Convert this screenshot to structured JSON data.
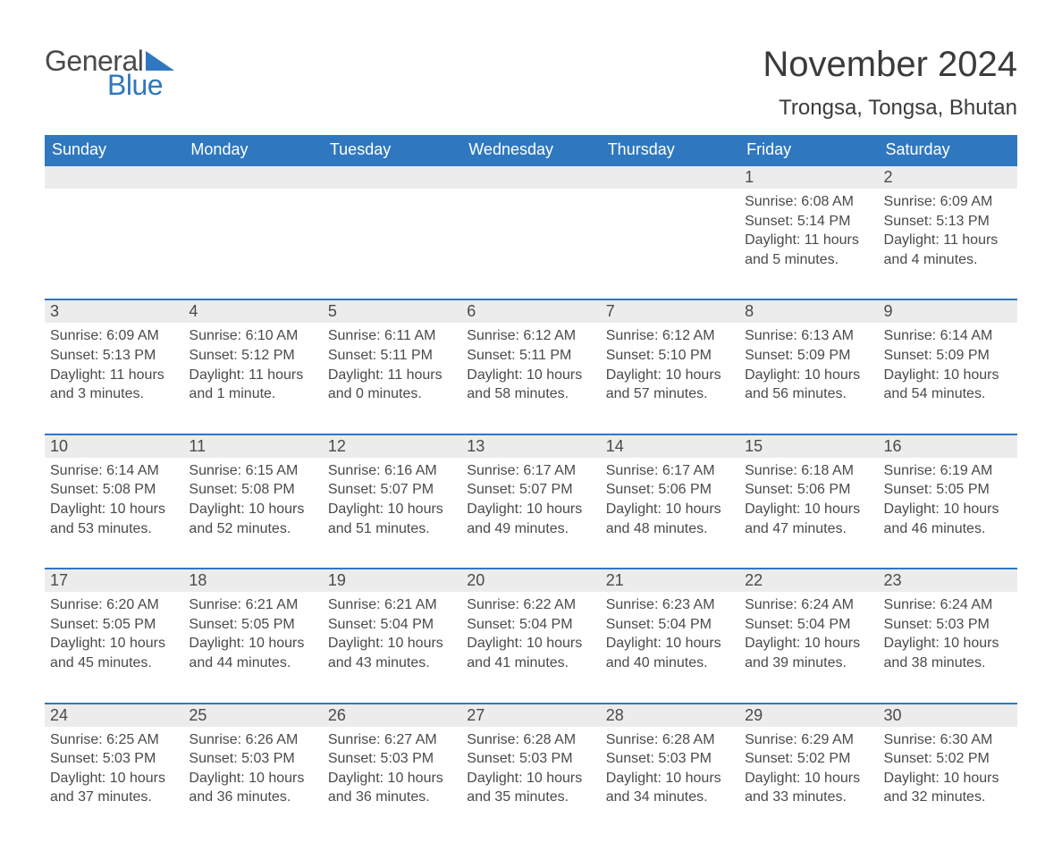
{
  "logo": {
    "text1": "General",
    "text2": "Blue",
    "accent_color": "#2f78bf"
  },
  "title": "November 2024",
  "location": "Trongsa, Tongsa, Bhutan",
  "colors": {
    "header_bg": "#2f78bf",
    "header_text": "#ffffff",
    "daynum_bg": "#ececec",
    "border_top": "#2f78bf",
    "body_text": "#4a4a4a"
  },
  "day_headers": [
    "Sunday",
    "Monday",
    "Tuesday",
    "Wednesday",
    "Thursday",
    "Friday",
    "Saturday"
  ],
  "weeks": [
    [
      {
        "day": "",
        "sunrise": "",
        "sunset": "",
        "daylight": ""
      },
      {
        "day": "",
        "sunrise": "",
        "sunset": "",
        "daylight": ""
      },
      {
        "day": "",
        "sunrise": "",
        "sunset": "",
        "daylight": ""
      },
      {
        "day": "",
        "sunrise": "",
        "sunset": "",
        "daylight": ""
      },
      {
        "day": "",
        "sunrise": "",
        "sunset": "",
        "daylight": ""
      },
      {
        "day": "1",
        "sunrise": "Sunrise: 6:08 AM",
        "sunset": "Sunset: 5:14 PM",
        "daylight": "Daylight: 11 hours and 5 minutes."
      },
      {
        "day": "2",
        "sunrise": "Sunrise: 6:09 AM",
        "sunset": "Sunset: 5:13 PM",
        "daylight": "Daylight: 11 hours and 4 minutes."
      }
    ],
    [
      {
        "day": "3",
        "sunrise": "Sunrise: 6:09 AM",
        "sunset": "Sunset: 5:13 PM",
        "daylight": "Daylight: 11 hours and 3 minutes."
      },
      {
        "day": "4",
        "sunrise": "Sunrise: 6:10 AM",
        "sunset": "Sunset: 5:12 PM",
        "daylight": "Daylight: 11 hours and 1 minute."
      },
      {
        "day": "5",
        "sunrise": "Sunrise: 6:11 AM",
        "sunset": "Sunset: 5:11 PM",
        "daylight": "Daylight: 11 hours and 0 minutes."
      },
      {
        "day": "6",
        "sunrise": "Sunrise: 6:12 AM",
        "sunset": "Sunset: 5:11 PM",
        "daylight": "Daylight: 10 hours and 58 minutes."
      },
      {
        "day": "7",
        "sunrise": "Sunrise: 6:12 AM",
        "sunset": "Sunset: 5:10 PM",
        "daylight": "Daylight: 10 hours and 57 minutes."
      },
      {
        "day": "8",
        "sunrise": "Sunrise: 6:13 AM",
        "sunset": "Sunset: 5:09 PM",
        "daylight": "Daylight: 10 hours and 56 minutes."
      },
      {
        "day": "9",
        "sunrise": "Sunrise: 6:14 AM",
        "sunset": "Sunset: 5:09 PM",
        "daylight": "Daylight: 10 hours and 54 minutes."
      }
    ],
    [
      {
        "day": "10",
        "sunrise": "Sunrise: 6:14 AM",
        "sunset": "Sunset: 5:08 PM",
        "daylight": "Daylight: 10 hours and 53 minutes."
      },
      {
        "day": "11",
        "sunrise": "Sunrise: 6:15 AM",
        "sunset": "Sunset: 5:08 PM",
        "daylight": "Daylight: 10 hours and 52 minutes."
      },
      {
        "day": "12",
        "sunrise": "Sunrise: 6:16 AM",
        "sunset": "Sunset: 5:07 PM",
        "daylight": "Daylight: 10 hours and 51 minutes."
      },
      {
        "day": "13",
        "sunrise": "Sunrise: 6:17 AM",
        "sunset": "Sunset: 5:07 PM",
        "daylight": "Daylight: 10 hours and 49 minutes."
      },
      {
        "day": "14",
        "sunrise": "Sunrise: 6:17 AM",
        "sunset": "Sunset: 5:06 PM",
        "daylight": "Daylight: 10 hours and 48 minutes."
      },
      {
        "day": "15",
        "sunrise": "Sunrise: 6:18 AM",
        "sunset": "Sunset: 5:06 PM",
        "daylight": "Daylight: 10 hours and 47 minutes."
      },
      {
        "day": "16",
        "sunrise": "Sunrise: 6:19 AM",
        "sunset": "Sunset: 5:05 PM",
        "daylight": "Daylight: 10 hours and 46 minutes."
      }
    ],
    [
      {
        "day": "17",
        "sunrise": "Sunrise: 6:20 AM",
        "sunset": "Sunset: 5:05 PM",
        "daylight": "Daylight: 10 hours and 45 minutes."
      },
      {
        "day": "18",
        "sunrise": "Sunrise: 6:21 AM",
        "sunset": "Sunset: 5:05 PM",
        "daylight": "Daylight: 10 hours and 44 minutes."
      },
      {
        "day": "19",
        "sunrise": "Sunrise: 6:21 AM",
        "sunset": "Sunset: 5:04 PM",
        "daylight": "Daylight: 10 hours and 43 minutes."
      },
      {
        "day": "20",
        "sunrise": "Sunrise: 6:22 AM",
        "sunset": "Sunset: 5:04 PM",
        "daylight": "Daylight: 10 hours and 41 minutes."
      },
      {
        "day": "21",
        "sunrise": "Sunrise: 6:23 AM",
        "sunset": "Sunset: 5:04 PM",
        "daylight": "Daylight: 10 hours and 40 minutes."
      },
      {
        "day": "22",
        "sunrise": "Sunrise: 6:24 AM",
        "sunset": "Sunset: 5:04 PM",
        "daylight": "Daylight: 10 hours and 39 minutes."
      },
      {
        "day": "23",
        "sunrise": "Sunrise: 6:24 AM",
        "sunset": "Sunset: 5:03 PM",
        "daylight": "Daylight: 10 hours and 38 minutes."
      }
    ],
    [
      {
        "day": "24",
        "sunrise": "Sunrise: 6:25 AM",
        "sunset": "Sunset: 5:03 PM",
        "daylight": "Daylight: 10 hours and 37 minutes."
      },
      {
        "day": "25",
        "sunrise": "Sunrise: 6:26 AM",
        "sunset": "Sunset: 5:03 PM",
        "daylight": "Daylight: 10 hours and 36 minutes."
      },
      {
        "day": "26",
        "sunrise": "Sunrise: 6:27 AM",
        "sunset": "Sunset: 5:03 PM",
        "daylight": "Daylight: 10 hours and 36 minutes."
      },
      {
        "day": "27",
        "sunrise": "Sunrise: 6:28 AM",
        "sunset": "Sunset: 5:03 PM",
        "daylight": "Daylight: 10 hours and 35 minutes."
      },
      {
        "day": "28",
        "sunrise": "Sunrise: 6:28 AM",
        "sunset": "Sunset: 5:03 PM",
        "daylight": "Daylight: 10 hours and 34 minutes."
      },
      {
        "day": "29",
        "sunrise": "Sunrise: 6:29 AM",
        "sunset": "Sunset: 5:02 PM",
        "daylight": "Daylight: 10 hours and 33 minutes."
      },
      {
        "day": "30",
        "sunrise": "Sunrise: 6:30 AM",
        "sunset": "Sunset: 5:02 PM",
        "daylight": "Daylight: 10 hours and 32 minutes."
      }
    ]
  ]
}
